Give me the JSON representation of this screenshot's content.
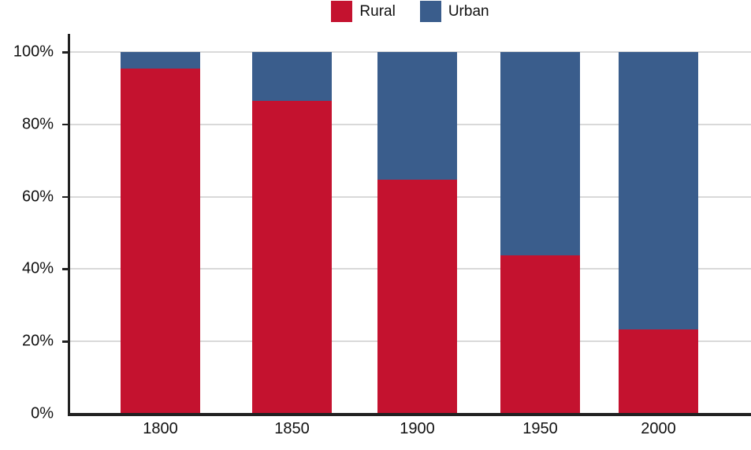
{
  "legend": {
    "items": [
      {
        "label": "Rural",
        "color": "#c4122f"
      },
      {
        "label": "Urban",
        "color": "#3a5d8c"
      }
    ]
  },
  "chart_data": {
    "type": "bar",
    "stacked": true,
    "title": "",
    "xlabel": "",
    "ylabel": "",
    "categories": [
      "1800",
      "1850",
      "1900",
      "1950",
      "2000"
    ],
    "series": [
      {
        "name": "Rural",
        "color": "#c4122f",
        "values": [
          95.5,
          86.5,
          64.8,
          43.8,
          23.3
        ]
      },
      {
        "name": "Urban",
        "color": "#3a5d8c",
        "values": [
          4.5,
          13.5,
          35.2,
          56.2,
          76.7
        ]
      }
    ],
    "ylim": [
      0,
      100
    ],
    "yticks": [
      {
        "value": 0,
        "label": "0%"
      },
      {
        "value": 20,
        "label": "20%"
      },
      {
        "value": 40,
        "label": "40%"
      },
      {
        "value": 60,
        "label": "60%"
      },
      {
        "value": 80,
        "label": "80%"
      },
      {
        "value": 100,
        "label": "100%"
      }
    ],
    "grid": true,
    "legend_position": "top-center"
  }
}
